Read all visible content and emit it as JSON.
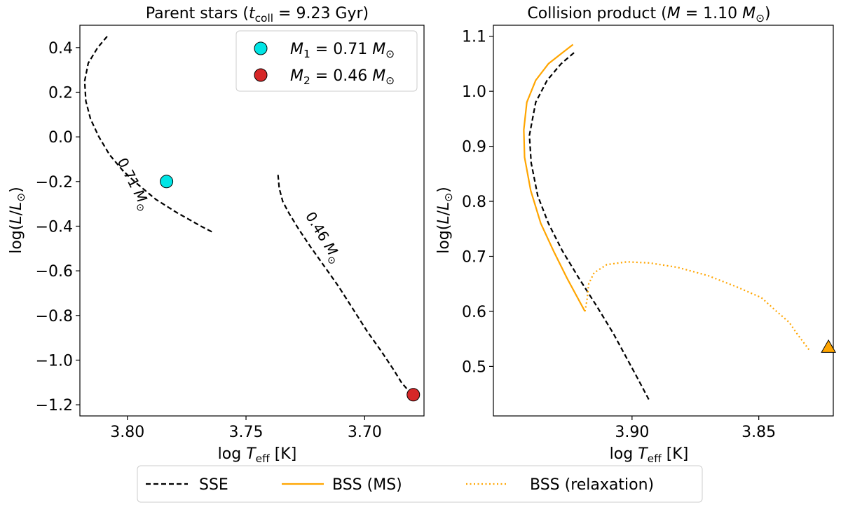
{
  "chart_data": [
    {
      "type": "line",
      "title": "Parent stars ($t_{\\rm coll} = 9.23$ Gyr)",
      "title_display": [
        "Parent stars (",
        "t",
        "coll",
        " = 9.23 Gyr)"
      ],
      "xlabel": "log T_eff [K]",
      "xlabel_display": [
        "log ",
        "T",
        "eff",
        " [K]"
      ],
      "ylabel": "log(L/L_sun)",
      "ylabel_display": [
        "log(",
        "L",
        "/",
        "L",
        "⊙",
        ")"
      ],
      "xlim": [
        3.82,
        3.675
      ],
      "ylim": [
        -1.25,
        0.5
      ],
      "x_ticks": [
        3.8,
        3.75,
        3.7
      ],
      "x_tick_labels": [
        "3.80",
        "3.75",
        "3.70"
      ],
      "y_ticks": [
        0.4,
        0.2,
        0.0,
        -0.2,
        -0.4,
        -0.6,
        -0.8,
        -1.0,
        -1.2
      ],
      "y_tick_labels": [
        "0.4",
        "0.2",
        "0.0",
        "−0.2",
        "−0.4",
        "−0.6",
        "−0.8",
        "−1.0",
        "−1.2"
      ],
      "series": [
        {
          "name": "0.71 M_sun track",
          "style": "dashed",
          "color": "#000000",
          "x": [
            3.8085,
            3.8125,
            3.8165,
            3.818,
            3.8175,
            3.8155,
            3.812,
            3.8075,
            3.802,
            3.797,
            3.7925,
            3.788,
            3.7835,
            3.779,
            3.774,
            3.769,
            3.7635
          ],
          "y": [
            0.45,
            0.4,
            0.33,
            0.25,
            0.16,
            0.08,
            0.0,
            -0.08,
            -0.15,
            -0.2,
            -0.24,
            -0.28,
            -0.31,
            -0.34,
            -0.37,
            -0.4,
            -0.43
          ]
        },
        {
          "name": "0.46 M_sun track",
          "style": "dashed",
          "color": "#000000",
          "x": [
            3.7365,
            3.736,
            3.7345,
            3.732,
            3.728,
            3.723,
            3.717,
            3.711,
            3.705,
            3.699,
            3.693,
            3.688,
            3.6845,
            3.6805
          ],
          "y": [
            -0.17,
            -0.23,
            -0.29,
            -0.34,
            -0.41,
            -0.49,
            -0.58,
            -0.67,
            -0.77,
            -0.87,
            -0.96,
            -1.04,
            -1.1,
            -1.15
          ]
        }
      ],
      "points": [
        {
          "name": "M1",
          "x": 3.7835,
          "y": -0.2,
          "color": "#00e5e5"
        },
        {
          "name": "M2",
          "x": 3.6795,
          "y": -1.155,
          "color": "#d62728"
        }
      ],
      "legend": {
        "placement": "top-right",
        "entries": [
          {
            "label_display": [
              "M",
              "1",
              " = 0.71 ",
              "M",
              "⊙"
            ],
            "color": "#00e5e5"
          },
          {
            "label_display": [
              "M",
              "2",
              " = 0.46 ",
              "M",
              "⊙"
            ],
            "color": "#d62728"
          }
        ]
      },
      "annotations": [
        {
          "text": "0.71 M_sun",
          "text_display": [
            "0.71 ",
            "M",
            "⊙"
          ],
          "x": 3.799,
          "y": -0.22,
          "rotation": 63
        },
        {
          "text": "0.46 M_sun",
          "text_display": [
            "0.46 ",
            "M",
            "⊙"
          ],
          "x": 3.719,
          "y": -0.46,
          "rotation": 59
        }
      ]
    },
    {
      "type": "line",
      "title": "Collision product ($M = 1.10\\ M_\\odot$)",
      "title_display": [
        "Collision product (",
        "M",
        " = 1.10 ",
        "M",
        "⊙",
        ")"
      ],
      "xlabel": "log T_eff [K]",
      "xlabel_display": [
        "log ",
        "T",
        "eff",
        " [K]"
      ],
      "ylabel": "log(L/L_sun)",
      "ylabel_display": [
        "log(",
        "L",
        "/",
        "L",
        "⊙",
        ")"
      ],
      "xlim": [
        3.9547,
        3.8206
      ],
      "ylim": [
        0.41,
        1.12
      ],
      "x_ticks": [
        3.9,
        3.85
      ],
      "x_tick_labels": [
        "3.90",
        "3.85"
      ],
      "y_ticks": [
        0.5,
        0.6,
        0.7,
        0.8,
        0.9,
        1.0,
        1.1
      ],
      "y_tick_labels": [
        "0.5",
        "0.6",
        "0.7",
        "0.8",
        "0.9",
        "1.0",
        "1.1"
      ],
      "series": [
        {
          "name": "SSE",
          "style": "dashed",
          "color": "#000000",
          "x": [
            3.9229,
            3.928,
            3.9335,
            3.938,
            3.9405,
            3.9398,
            3.9372,
            3.933,
            3.9275,
            3.9209,
            3.914,
            3.9074,
            3.9027,
            3.898,
            3.8934
          ],
          "y": [
            1.07,
            1.05,
            1.02,
            0.98,
            0.92,
            0.87,
            0.81,
            0.76,
            0.71,
            0.66,
            0.61,
            0.56,
            0.52,
            0.48,
            0.44
          ]
        },
        {
          "name": "BSS (MS)",
          "style": "solid",
          "color": "#ffa500",
          "x": [
            3.9233,
            3.9275,
            3.933,
            3.938,
            3.9415,
            3.9427,
            3.9424,
            3.94,
            3.936,
            3.931,
            3.9256,
            3.9186
          ],
          "y": [
            1.085,
            1.07,
            1.05,
            1.02,
            0.98,
            0.93,
            0.88,
            0.82,
            0.76,
            0.71,
            0.66,
            0.6
          ]
        },
        {
          "name": "BSS (relaxation)",
          "style": "dotted",
          "color": "#ffa500",
          "x": [
            3.9186,
            3.9178,
            3.9171,
            3.915,
            3.91,
            3.902,
            3.893,
            3.882,
            3.87,
            3.859,
            3.849,
            3.843,
            3.838,
            3.835,
            3.8301
          ],
          "y": [
            0.6,
            0.62,
            0.65,
            0.67,
            0.685,
            0.69,
            0.688,
            0.68,
            0.665,
            0.645,
            0.625,
            0.6,
            0.58,
            0.56,
            0.53
          ]
        }
      ],
      "points": [
        {
          "name": "relaxation end",
          "marker": "triangle",
          "x": 3.8225,
          "y": 0.535,
          "color": "#ffa500"
        }
      ]
    }
  ],
  "figure_legend": {
    "placement": "bottom-center",
    "entries": [
      {
        "label": "SSE",
        "style": "dashed",
        "color": "#000000"
      },
      {
        "label": "BSS (MS)",
        "style": "solid",
        "color": "#ffa500"
      },
      {
        "label": "BSS (relaxation)",
        "style": "dotted",
        "color": "#ffa500"
      }
    ]
  }
}
